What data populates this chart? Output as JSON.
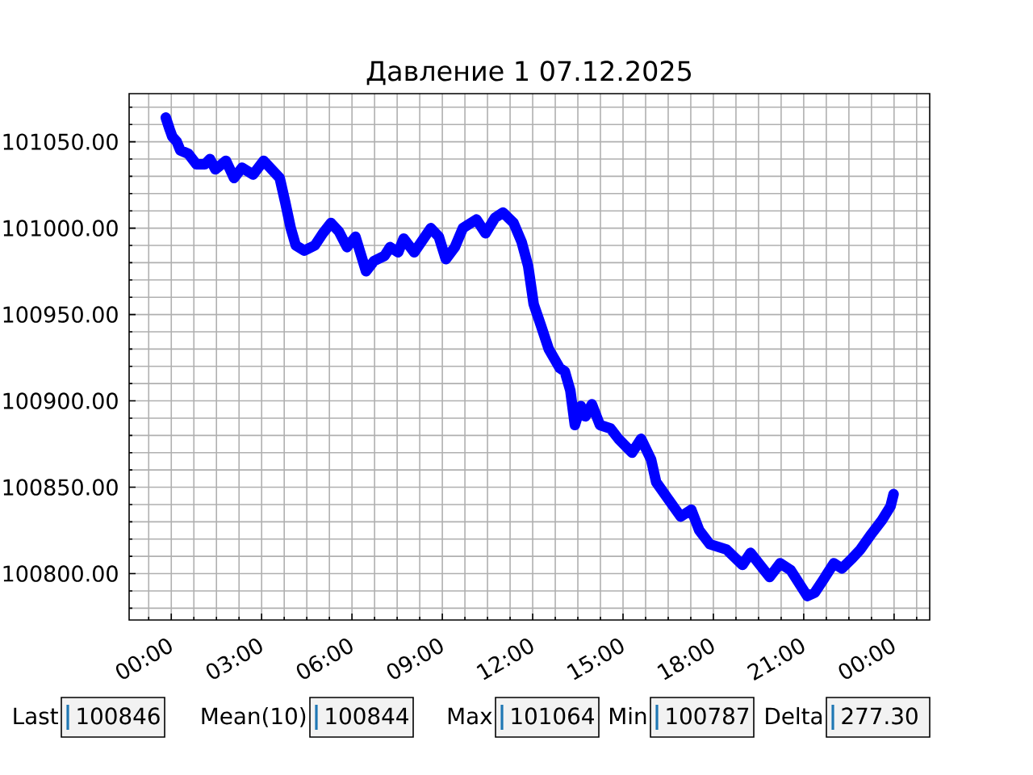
{
  "chart_data": {
    "type": "line",
    "title": "Давление 1 07.12.2025",
    "x": [
      "2025-12-06T23:49",
      "2025-12-06T23:57",
      "2025-12-07T00:02",
      "2025-12-07T00:11",
      "2025-12-07T00:18",
      "2025-12-07T00:34",
      "2025-12-07T00:50",
      "2025-12-07T01:07",
      "2025-12-07T01:17",
      "2025-12-07T01:28",
      "2025-12-07T01:49",
      "2025-12-07T02:05",
      "2025-12-07T02:21",
      "2025-12-07T02:43",
      "2025-12-07T03:04",
      "2025-12-07T03:20",
      "2025-12-07T03:36",
      "2025-12-07T03:47",
      "2025-12-07T03:58",
      "2025-12-07T04:08",
      "2025-12-07T04:25",
      "2025-12-07T04:46",
      "2025-12-07T05:02",
      "2025-12-07T05:18",
      "2025-12-07T05:34",
      "2025-12-07T05:50",
      "2025-12-07T06:07",
      "2025-12-07T06:28",
      "2025-12-07T06:44",
      "2025-12-07T07:05",
      "2025-12-07T07:16",
      "2025-12-07T07:32",
      "2025-12-07T07:43",
      "2025-12-07T08:04",
      "2025-12-07T08:37",
      "2025-12-07T08:53",
      "2025-12-07T09:07",
      "2025-12-07T09:25",
      "2025-12-07T09:41",
      "2025-12-07T10:08",
      "2025-12-07T10:26",
      "2025-12-07T10:45",
      "2025-12-07T11:01",
      "2025-12-07T11:22",
      "2025-12-07T11:38",
      "2025-12-07T11:51",
      "2025-12-07T12:02",
      "2025-12-07T12:16",
      "2025-12-07T12:32",
      "2025-12-07T12:54",
      "2025-12-07T13:04",
      "2025-12-07T13:15",
      "2025-12-07T13:24",
      "2025-12-07T13:36",
      "2025-12-07T13:45",
      "2025-12-07T13:58",
      "2025-12-07T14:14",
      "2025-12-07T14:35",
      "2025-12-07T14:51",
      "2025-12-07T15:18",
      "2025-12-07T15:36",
      "2025-12-07T15:56",
      "2025-12-07T16:06",
      "2025-12-07T16:28",
      "2025-12-07T16:55",
      "2025-12-07T17:16",
      "2025-12-07T17:32",
      "2025-12-07T17:53",
      "2025-12-07T18:26",
      "2025-12-07T18:58",
      "2025-12-07T19:14",
      "2025-12-07T19:52",
      "2025-12-07T20:13",
      "2025-12-07T20:34",
      "2025-12-07T21:07",
      "2025-12-07T21:22",
      "2025-12-07T21:38",
      "2025-12-07T22:00",
      "2025-12-07T22:16",
      "2025-12-07T22:37",
      "2025-12-07T22:53",
      "2025-12-07T23:15",
      "2025-12-07T23:36",
      "2025-12-07T23:53",
      "2025-12-07T23:59"
    ],
    "series": [
      {
        "color": "#0000ff",
        "values": [
          101064,
          101057,
          101053,
          101050,
          101045,
          101043,
          101037,
          101037,
          101040,
          101034,
          101039,
          101029,
          101035,
          101031,
          101039,
          101034,
          101029,
          101015,
          101000,
          100990,
          100987,
          100990,
          100997,
          101003,
          100998,
          100989,
          100995,
          100975,
          100981,
          100984,
          100989,
          100986,
          100994,
          100986,
          101000,
          100995,
          100982,
          100989,
          101000,
          101005,
          100997,
          101006,
          101009,
          101003,
          100992,
          100978,
          100956,
          100944,
          100930,
          100919,
          100917,
          100906,
          100886,
          100897,
          100891,
          100898,
          100886,
          100884,
          100878,
          100870,
          100878,
          100866,
          100853,
          100844,
          100833,
          100837,
          100825,
          100817,
          100814,
          100805,
          100812,
          100798,
          100806,
          100802,
          100787,
          100789,
          100796,
          100806,
          100803,
          100809,
          100814,
          100823,
          100831,
          100839,
          100846
        ]
      }
    ],
    "xlim": [
      "2025-12-06T22:36",
      "2025-12-08T01:11"
    ],
    "xticks": [
      {
        "value": "2025-12-07T00:00",
        "label": "00:00"
      },
      {
        "value": "2025-12-07T03:00",
        "label": "03:00"
      },
      {
        "value": "2025-12-07T06:00",
        "label": "06:00"
      },
      {
        "value": "2025-12-07T09:00",
        "label": "09:00"
      },
      {
        "value": "2025-12-07T12:00",
        "label": "12:00"
      },
      {
        "value": "2025-12-07T15:00",
        "label": "15:00"
      },
      {
        "value": "2025-12-07T18:00",
        "label": "18:00"
      },
      {
        "value": "2025-12-07T21:00",
        "label": "21:00"
      },
      {
        "value": "2025-12-08T00:00",
        "label": "00:00"
      }
    ],
    "ylim": [
      100773.15,
      101077.85
    ],
    "yticks": [
      {
        "value": 100800,
        "label": "100800.00"
      },
      {
        "value": 100850,
        "label": "100850.00"
      },
      {
        "value": 100900,
        "label": "100900.00"
      },
      {
        "value": 100950,
        "label": "100950.00"
      },
      {
        "value": 101000,
        "label": "101000.00"
      },
      {
        "value": 101050,
        "label": "101050.00"
      }
    ],
    "grid": true,
    "line_style": "solid",
    "annotations": [
      "Last",
      "100846",
      "Mean(10)",
      "100844",
      "Max",
      "101064",
      "Min",
      "100787",
      "Delta",
      "277.30"
    ]
  }
}
